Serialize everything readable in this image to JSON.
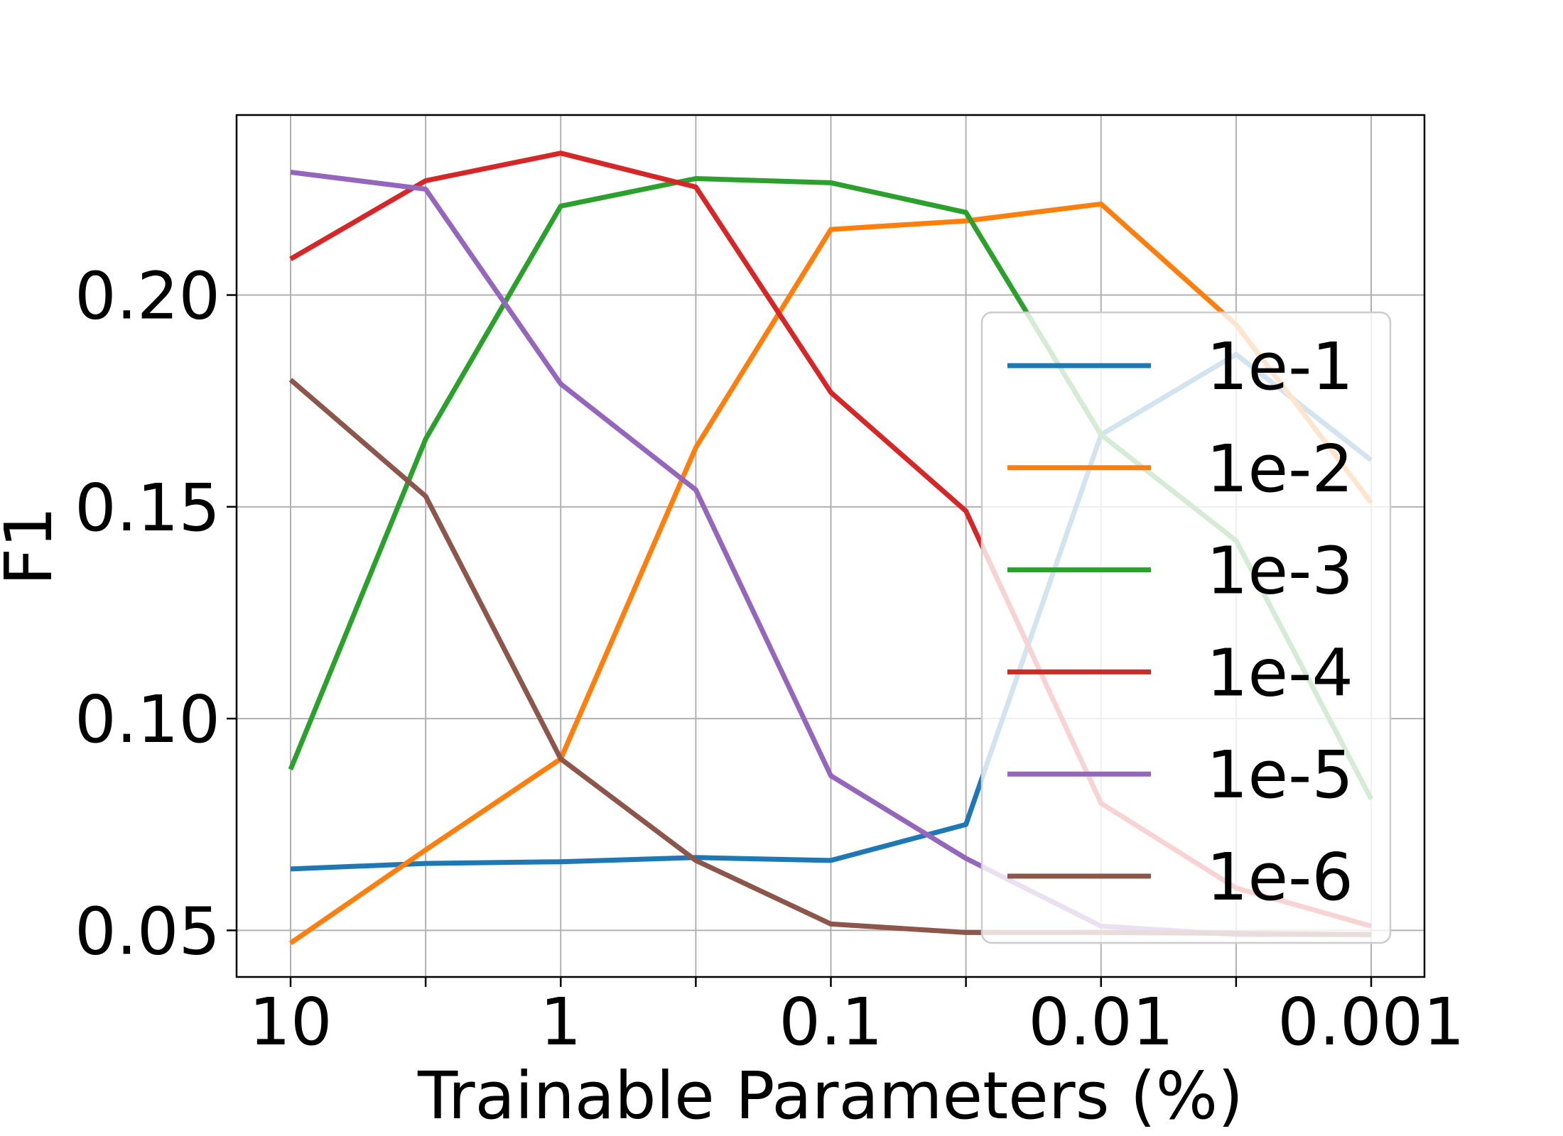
{
  "chart_data": {
    "type": "line",
    "xlabel": "Trainable Parameters (%)",
    "ylabel": "F1",
    "x_scale": "log",
    "x_reversed": true,
    "x_tick_labels": [
      "10",
      "1",
      "0.1",
      "0.01",
      "0.001"
    ],
    "x_tick_values": [
      10,
      1,
      0.1,
      0.01,
      0.001
    ],
    "x_minor_values": [
      3.1623,
      0.31623,
      0.031623,
      0.0031623
    ],
    "y_ticks": [
      0.05,
      0.1,
      0.15,
      0.2
    ],
    "y_tick_labels": [
      "0.05",
      "0.10",
      "0.15",
      "0.20"
    ],
    "ylim": [
      0.039,
      0.2425
    ],
    "grid": true,
    "legend_placement": "lower right",
    "x": [
      10,
      3.1623,
      1,
      0.31623,
      0.1,
      0.031623,
      0.01,
      0.0031623,
      0.001
    ],
    "series": [
      {
        "name": "1e-1",
        "color": "#1f77b4",
        "values": [
          0.0645,
          0.0658,
          0.0662,
          0.0672,
          0.0665,
          0.075,
          0.167,
          0.186,
          0.161
        ]
      },
      {
        "name": "1e-2",
        "color": "#ff7f0e",
        "values": [
          0.047,
          0.069,
          0.0905,
          0.164,
          0.2155,
          0.2175,
          0.2215,
          0.193,
          0.151
        ]
      },
      {
        "name": "1e-3",
        "color": "#2ca02c",
        "values": [
          0.088,
          0.166,
          0.221,
          0.2275,
          0.2265,
          0.2195,
          0.167,
          0.142,
          0.081
        ]
      },
      {
        "name": "1e-4",
        "color": "#d62728",
        "values": [
          0.2085,
          0.227,
          0.2335,
          0.2255,
          0.177,
          0.149,
          0.08,
          0.06,
          0.051
        ]
      },
      {
        "name": "1e-5",
        "color": "#9467bd",
        "values": [
          0.229,
          0.225,
          0.179,
          0.154,
          0.0865,
          0.067,
          0.051,
          0.049,
          0.049
        ]
      },
      {
        "name": "1e-6",
        "color": "#8c564b",
        "values": [
          0.18,
          0.1525,
          0.0905,
          0.0665,
          0.0515,
          0.0495,
          0.0495,
          0.0493,
          0.049
        ]
      }
    ]
  }
}
